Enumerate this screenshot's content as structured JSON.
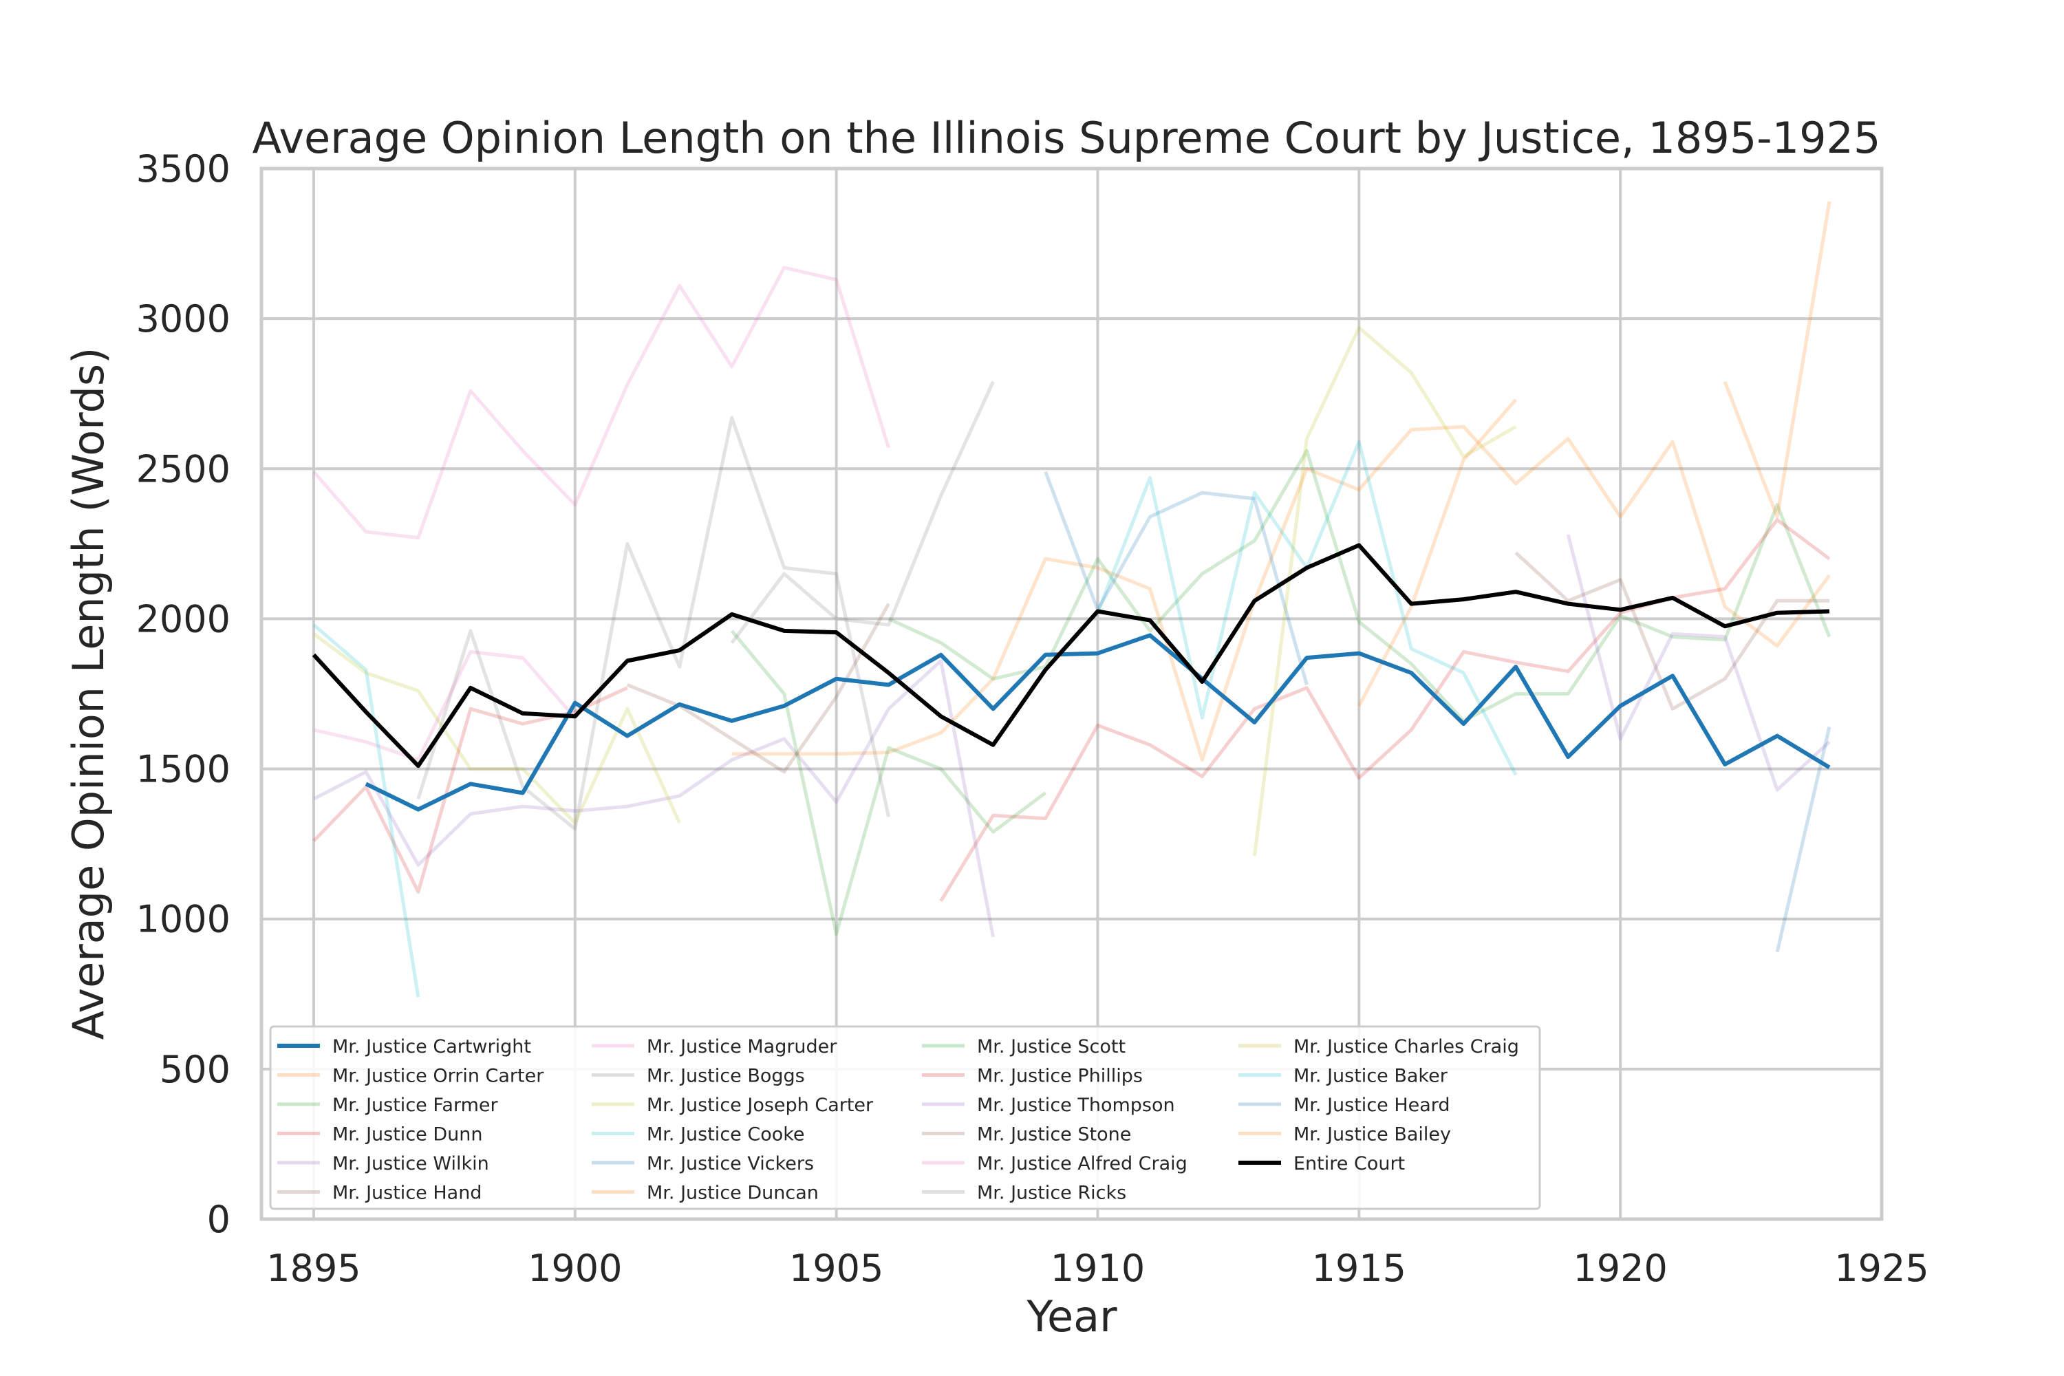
{
  "chart_data": {
    "type": "line",
    "title": "Average Opinion Length on the Illinois Supreme Court by Justice, 1895-1925",
    "xlabel": "Year",
    "ylabel": "Average Opinion Length (Words)",
    "xlim": [
      1894,
      1925
    ],
    "ylim": [
      0,
      3500
    ],
    "xticks": [
      1895,
      1900,
      1905,
      1910,
      1915,
      1920,
      1925
    ],
    "yticks": [
      0,
      500,
      1000,
      1500,
      2000,
      2500,
      3000,
      3500
    ],
    "grid": true,
    "legend_position": "lower-left",
    "legend_columns": 4,
    "series": [
      {
        "name": "Mr. Justice Cartwright",
        "color": "#1f77b4",
        "highlight": true,
        "x": [
          1896,
          1897,
          1898,
          1899,
          1900,
          1901,
          1902,
          1903,
          1904,
          1905,
          1906,
          1907,
          1908,
          1909,
          1910,
          1911,
          1912,
          1913,
          1914,
          1915,
          1916,
          1917,
          1918,
          1919,
          1920,
          1921,
          1922,
          1923,
          1924
        ],
        "y": [
          1450,
          1365,
          1450,
          1420,
          1720,
          1610,
          1715,
          1660,
          1710,
          1800,
          1780,
          1880,
          1700,
          1880,
          1885,
          1945,
          1800,
          1655,
          1870,
          1885,
          1820,
          1650,
          1840,
          1540,
          1710,
          1810,
          1515,
          1610,
          1505
        ]
      },
      {
        "name": "Mr. Justice Orrin Carter",
        "color": "#ff7f0e",
        "x": [
          1903,
          1904,
          1905,
          1906,
          1907,
          1908,
          1909,
          1910,
          1911,
          1912,
          1913,
          1914,
          1915,
          1916,
          1917,
          1918,
          1919,
          1920,
          1921,
          1922,
          1923,
          1924
        ],
        "y": [
          1550,
          1550,
          1550,
          1555,
          1620,
          1800,
          2200,
          2170,
          2100,
          1530,
          2060,
          2500,
          2430,
          2630,
          2640,
          2450,
          2600,
          2340,
          2590,
          2040,
          1910,
          2145
        ]
      },
      {
        "name": "Mr. Justice Farmer",
        "color": "#2ca02c",
        "x": [
          1906,
          1907,
          1908,
          1909,
          1910,
          1911,
          1912,
          1913,
          1914,
          1915,
          1916,
          1917,
          1918,
          1919,
          1920,
          1921,
          1922,
          1923,
          1924
        ],
        "y": [
          2000,
          1920,
          1800,
          1840,
          2200,
          1960,
          2150,
          2260,
          2560,
          1990,
          1850,
          1660,
          1750,
          1750,
          2010,
          1940,
          1930,
          2380,
          1940
        ]
      },
      {
        "name": "Mr. Justice Dunn",
        "color": "#d62728",
        "x": [
          1907,
          1908,
          1909,
          1910,
          1911,
          1912,
          1913,
          1914,
          1915,
          1916,
          1917,
          1918,
          1919,
          1920,
          1921,
          1922,
          1923,
          1924
        ],
        "y": [
          1060,
          1345,
          1335,
          1645,
          1580,
          1475,
          1700,
          1770,
          1470,
          1630,
          1890,
          1855,
          1825,
          2020,
          2070,
          2100,
          2330,
          2200
        ]
      },
      {
        "name": "Mr. Justice Wilkin",
        "color": "#9467bd",
        "x": [
          1895,
          1896,
          1897,
          1898,
          1899,
          1900,
          1901,
          1902,
          1903,
          1904,
          1905,
          1906,
          1907,
          1908
        ],
        "y": [
          1400,
          1490,
          1180,
          1350,
          1375,
          1360,
          1375,
          1410,
          1530,
          1600,
          1390,
          1700,
          1860,
          940
        ]
      },
      {
        "name": "Mr. Justice Hand",
        "color": "#8c564b",
        "x": [
          1901,
          1902,
          1903,
          1904,
          1905,
          1906
        ],
        "y": [
          1780,
          1710,
          1600,
          1490,
          1740,
          2050
        ]
      },
      {
        "name": "Mr. Justice Magruder",
        "color": "#e377c2",
        "x": [
          1895,
          1896,
          1897,
          1898,
          1899,
          1900,
          1901,
          1902,
          1903,
          1904,
          1905,
          1906
        ],
        "y": [
          2490,
          2290,
          2270,
          2760,
          2560,
          2380,
          2780,
          3110,
          2840,
          3170,
          3130,
          2570
        ]
      },
      {
        "name": "Mr. Justice Boggs",
        "color": "#7f7f7f",
        "x": [
          1897,
          1898,
          1899,
          1900,
          1901,
          1902,
          1903,
          1904,
          1905,
          1906
        ],
        "y": [
          1400,
          1960,
          1440,
          1300,
          2250,
          1840,
          2670,
          2170,
          2150,
          1340
        ]
      },
      {
        "name": "Mr. Justice Joseph Carter",
        "color": "#bcbd22",
        "x": [
          1895,
          1896,
          1897,
          1898,
          1899,
          1900,
          1901,
          1902
        ],
        "y": [
          1950,
          1820,
          1760,
          1500,
          1500,
          1320,
          1700,
          1320
        ]
      },
      {
        "name": "Mr. Justice Cooke",
        "color": "#17becf",
        "x": [
          1910,
          1911,
          1912,
          1913,
          1914,
          1915,
          1916,
          1917,
          1918
        ],
        "y": [
          2020,
          2470,
          1670,
          2420,
          2170,
          2590,
          1900,
          1820,
          1480
        ]
      },
      {
        "name": "Mr. Justice Vickers",
        "color": "#1f77b4",
        "x": [
          1909,
          1910,
          1911,
          1912,
          1913,
          1914
        ],
        "y": [
          2490,
          2030,
          2340,
          2420,
          2400,
          1780
        ]
      },
      {
        "name": "Mr. Justice Duncan",
        "color": "#ff7f0e",
        "x": [
          1915,
          1916,
          1917,
          1918
        ],
        "y": [
          1710,
          2040,
          2530,
          2730
        ]
      },
      {
        "name": "Mr. Justice Scott",
        "color": "#2ca02c",
        "x": [
          1903,
          1904,
          1905,
          1906,
          1907,
          1908,
          1909
        ],
        "y": [
          1960,
          1750,
          950,
          1570,
          1500,
          1290,
          1420
        ]
      },
      {
        "name": "Mr. Justice Phillips",
        "color": "#d62728",
        "x": [
          1895,
          1896,
          1897,
          1898,
          1899,
          1900,
          1901
        ],
        "y": [
          1260,
          1440,
          1090,
          1700,
          1650,
          1690,
          1770
        ]
      },
      {
        "name": "Mr. Justice Thompson",
        "color": "#9467bd",
        "x": [
          1919,
          1920,
          1921,
          1922,
          1923,
          1924
        ],
        "y": [
          2280,
          1600,
          1950,
          1940,
          1430,
          1590
        ]
      },
      {
        "name": "Mr. Justice Stone",
        "color": "#8c564b",
        "x": [
          1918,
          1919,
          1920,
          1921,
          1922,
          1923,
          1924
        ],
        "y": [
          2220,
          2060,
          2130,
          1700,
          1800,
          2060,
          2060
        ]
      },
      {
        "name": "Mr. Justice Alfred Craig",
        "color": "#e377c2",
        "x": [
          1895,
          1896,
          1897,
          1898,
          1899,
          1900
        ],
        "y": [
          1630,
          1590,
          1530,
          1890,
          1870,
          1670
        ]
      },
      {
        "name": "Mr. Justice Ricks",
        "color": "#7f7f7f",
        "x": [
          1903,
          1904,
          1905,
          1906,
          1907,
          1908
        ],
        "y": [
          1920,
          2150,
          2000,
          1980,
          2410,
          2790
        ]
      },
      {
        "name": "Mr. Justice Charles Craig",
        "color": "#bcbd22",
        "x": [
          1913,
          1914,
          1915,
          1916,
          1917,
          1918
        ],
        "y": [
          1210,
          2600,
          2970,
          2820,
          2540,
          2640
        ]
      },
      {
        "name": "Mr. Justice Baker",
        "color": "#17becf",
        "x": [
          1895,
          1896,
          1897
        ],
        "y": [
          1980,
          1830,
          740
        ]
      },
      {
        "name": "Mr. Justice Heard",
        "color": "#1f77b4",
        "x": [
          1923,
          1924
        ],
        "y": [
          890,
          1640
        ]
      },
      {
        "name": "Mr. Justice Bailey",
        "color": "#ff7f0e",
        "x": [
          1922,
          1923,
          1924
        ],
        "y": [
          2790,
          2340,
          3390
        ]
      },
      {
        "name": "Entire Court",
        "color": "#000000",
        "highlight": true,
        "x": [
          1895,
          1896,
          1897,
          1898,
          1899,
          1900,
          1901,
          1902,
          1903,
          1904,
          1905,
          1906,
          1907,
          1908,
          1909,
          1910,
          1911,
          1912,
          1913,
          1914,
          1915,
          1916,
          1917,
          1918,
          1919,
          1920,
          1921,
          1922,
          1923,
          1924
        ],
        "y": [
          1880,
          1690,
          1510,
          1770,
          1685,
          1675,
          1860,
          1895,
          2015,
          1960,
          1955,
          1820,
          1675,
          1580,
          1830,
          2025,
          1995,
          1790,
          2060,
          2170,
          2245,
          2050,
          2065,
          2090,
          2050,
          2030,
          2070,
          1975,
          2020,
          2025
        ]
      }
    ]
  }
}
